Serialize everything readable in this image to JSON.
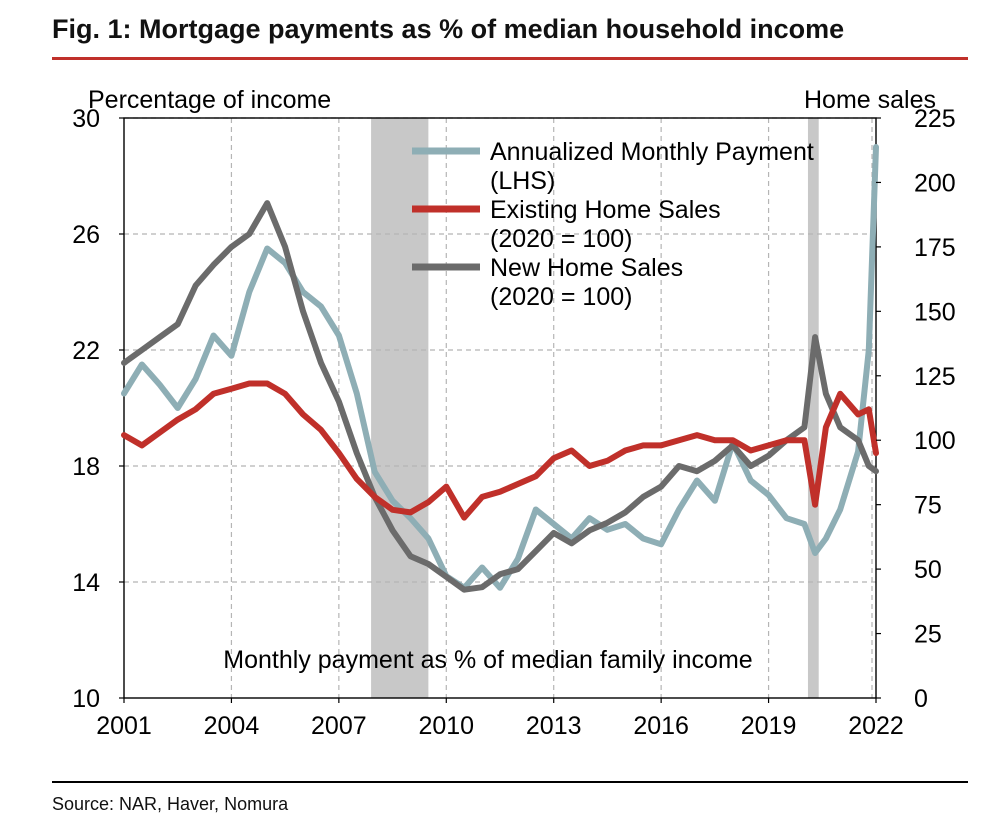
{
  "figure": {
    "title": "Fig. 1: Mortgage payments as % of median household income",
    "source": "Source: NAR, Haver, Nomura"
  },
  "chart_data": {
    "type": "line",
    "left_axis_label": "Percentage of income",
    "right_axis_label": "Home sales",
    "bottom_annotation": "Monthly payment as % of median family income",
    "x_ticks": [
      2001,
      2004,
      2007,
      2010,
      2013,
      2016,
      2019,
      2022
    ],
    "xlim": [
      2001,
      2022
    ],
    "y_left": {
      "min": 10,
      "max": 30,
      "ticks": [
        10,
        14,
        18,
        22,
        26,
        30
      ]
    },
    "y_right": {
      "min": 0,
      "max": 225,
      "ticks": [
        0,
        25,
        50,
        75,
        100,
        125,
        150,
        175,
        200,
        225
      ]
    },
    "grid": true,
    "legend_position": "top-center",
    "recessions": [
      [
        2007.9,
        2009.5
      ],
      [
        2020.1,
        2020.4
      ]
    ],
    "series": [
      {
        "name": "Annualized Monthly Payment (LHS)",
        "axis": "left",
        "color": "#8eaeb5",
        "x": [
          2001,
          2001.5,
          2002,
          2002.5,
          2003,
          2003.5,
          2004,
          2004.5,
          2005,
          2005.5,
          2006,
          2006.5,
          2007,
          2007.5,
          2008,
          2008.5,
          2009,
          2009.5,
          2010,
          2010.5,
          2011,
          2011.5,
          2012,
          2012.5,
          2013,
          2013.5,
          2014,
          2014.5,
          2015,
          2015.5,
          2016,
          2016.5,
          2017,
          2017.5,
          2018,
          2018.5,
          2019,
          2019.5,
          2020,
          2020.3,
          2020.6,
          2021,
          2021.5,
          2021.8,
          2022
        ],
        "y": [
          20.5,
          21.5,
          20.8,
          20.0,
          21.0,
          22.5,
          21.8,
          24.0,
          25.5,
          25.0,
          24.0,
          23.5,
          22.5,
          20.5,
          17.8,
          16.8,
          16.2,
          15.5,
          14.2,
          13.8,
          14.5,
          13.8,
          14.8,
          16.5,
          16.0,
          15.5,
          16.2,
          15.8,
          16.0,
          15.5,
          15.3,
          16.5,
          17.5,
          16.8,
          18.8,
          17.5,
          17.0,
          16.2,
          16.0,
          15.0,
          15.5,
          16.5,
          18.5,
          22.0,
          29.0
        ]
      },
      {
        "name": "Existing Home Sales (2020 = 100)",
        "axis": "right",
        "color": "#c0302a",
        "x": [
          2001,
          2001.5,
          2002,
          2002.5,
          2003,
          2003.5,
          2004,
          2004.5,
          2005,
          2005.5,
          2006,
          2006.5,
          2007,
          2007.5,
          2008,
          2008.5,
          2009,
          2009.5,
          2010,
          2010.5,
          2011,
          2011.5,
          2012,
          2012.5,
          2013,
          2013.5,
          2014,
          2014.5,
          2015,
          2015.5,
          2016,
          2016.5,
          2017,
          2017.5,
          2018,
          2018.5,
          2019,
          2019.5,
          2020,
          2020.3,
          2020.6,
          2021,
          2021.5,
          2021.8,
          2022
        ],
        "y": [
          102,
          98,
          103,
          108,
          112,
          118,
          120,
          122,
          122,
          118,
          110,
          104,
          95,
          85,
          78,
          73,
          72,
          76,
          82,
          70,
          78,
          80,
          83,
          86,
          93,
          96,
          90,
          92,
          96,
          98,
          98,
          100,
          102,
          100,
          100,
          96,
          98,
          100,
          100,
          75,
          105,
          118,
          110,
          112,
          95
        ]
      },
      {
        "name": "New Home Sales (2020 = 100)",
        "axis": "right",
        "color": "#6b6b6b",
        "x": [
          2001,
          2001.5,
          2002,
          2002.5,
          2003,
          2003.5,
          2004,
          2004.5,
          2005,
          2005.5,
          2006,
          2006.5,
          2007,
          2007.5,
          2008,
          2008.5,
          2009,
          2009.5,
          2010,
          2010.5,
          2011,
          2011.5,
          2012,
          2012.5,
          2013,
          2013.5,
          2014,
          2014.5,
          2015,
          2015.5,
          2016,
          2016.5,
          2017,
          2017.5,
          2018,
          2018.5,
          2019,
          2019.5,
          2020,
          2020.3,
          2020.6,
          2021,
          2021.5,
          2021.8,
          2022
        ],
        "y": [
          130,
          135,
          140,
          145,
          160,
          168,
          175,
          180,
          192,
          175,
          150,
          130,
          115,
          95,
          78,
          65,
          55,
          52,
          47,
          42,
          43,
          48,
          50,
          57,
          64,
          60,
          65,
          68,
          72,
          78,
          82,
          90,
          88,
          92,
          98,
          90,
          94,
          100,
          105,
          140,
          118,
          105,
          100,
          90,
          88
        ]
      }
    ]
  }
}
